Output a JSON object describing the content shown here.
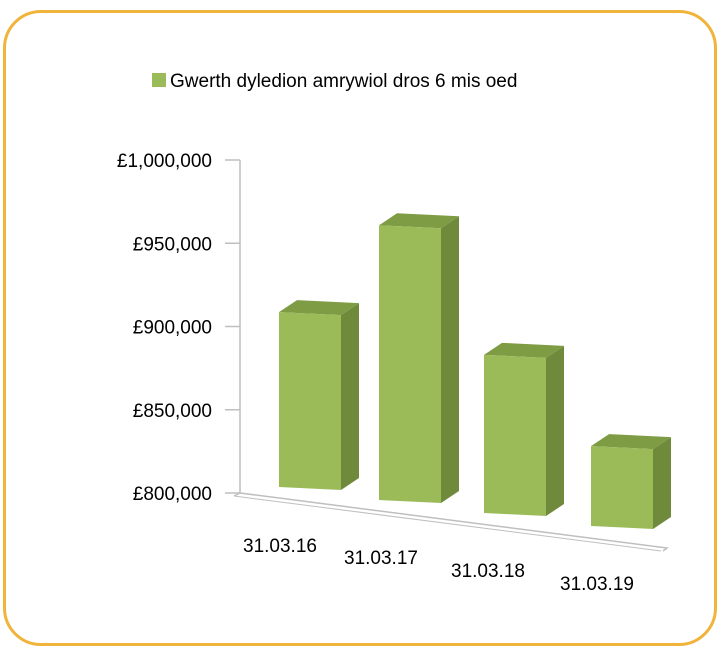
{
  "chart_data": {
    "type": "bar",
    "style": "3d-column",
    "categories": [
      "31.03.16",
      "31.03.17",
      "31.03.18",
      "31.03.19"
    ],
    "series": [
      {
        "name": "Gwerth dyledion amrywiol dros 6 mis oed",
        "values": [
          905000,
          965000,
          895000,
          848000
        ]
      }
    ],
    "y_ticks": [
      "£800,000",
      "£850,000",
      "£900,000",
      "£950,000",
      "£1,000,000"
    ],
    "ylim": [
      800000,
      1000000
    ],
    "grid": false,
    "legend_position": "top-center",
    "colors": {
      "bar_front": "#9bbb59",
      "bar_side": "#6f8a3a",
      "bar_top": "#7e9c44",
      "frame": "#f0b43c",
      "axis": "#bfbfbf"
    }
  }
}
